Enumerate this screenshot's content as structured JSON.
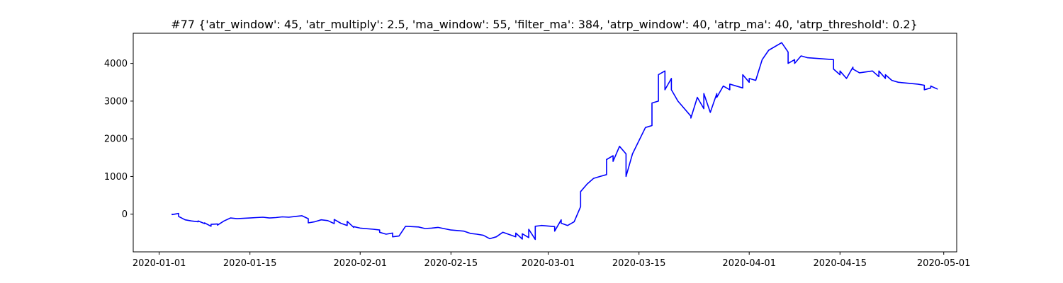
{
  "chart_data": {
    "type": "line",
    "title": "#77 {'atr_window': 45, 'atr_multiply': 2.5, 'ma_window': 55, 'filter_ma': 384, 'atrp_window': 40, 'atrp_ma': 40, 'atrp_threshold': 0.2}",
    "xlabel": "",
    "ylabel": "",
    "x_axis_type": "date",
    "xlim": [
      "2019-12-28",
      "2020-05-03"
    ],
    "ylim": [
      -1000,
      4800
    ],
    "grid": false,
    "legend": "none",
    "line_color": "#0000ff",
    "x_ticks": [
      {
        "date": "2020-01-01",
        "label": "2020-01-01"
      },
      {
        "date": "2020-01-15",
        "label": "2020-01-15"
      },
      {
        "date": "2020-02-01",
        "label": "2020-02-01"
      },
      {
        "date": "2020-02-15",
        "label": "2020-02-15"
      },
      {
        "date": "2020-03-01",
        "label": "2020-03-01"
      },
      {
        "date": "2020-03-15",
        "label": "2020-03-15"
      },
      {
        "date": "2020-04-01",
        "label": "2020-04-01"
      },
      {
        "date": "2020-04-15",
        "label": "2020-04-15"
      },
      {
        "date": "2020-05-01",
        "label": "2020-05-01"
      }
    ],
    "y_ticks": [
      {
        "value": 0,
        "label": "0"
      },
      {
        "value": 1000,
        "label": "1000"
      },
      {
        "value": 2000,
        "label": "2000"
      },
      {
        "value": 3000,
        "label": "3000"
      },
      {
        "value": 4000,
        "label": "4000"
      }
    ],
    "series": [
      {
        "x": [
          "2020-01-03",
          "2020-01-03",
          "2020-01-04",
          "2020-01-04",
          "2020-01-04",
          "2020-01-05",
          "2020-01-06",
          "2020-01-07",
          "2020-01-07",
          "2020-01-08",
          "2020-01-08",
          "2020-01-09",
          "2020-01-09",
          "2020-01-10",
          "2020-01-10",
          "2020-01-11",
          "2020-01-12",
          "2020-01-13",
          "2020-01-14",
          "2020-01-15",
          "2020-01-16",
          "2020-01-17",
          "2020-01-18",
          "2020-01-19",
          "2020-01-20",
          "2020-01-21",
          "2020-01-22",
          "2020-01-23",
          "2020-01-24",
          "2020-01-24",
          "2020-01-25",
          "2020-01-26",
          "2020-01-27",
          "2020-01-28",
          "2020-01-28",
          "2020-01-29",
          "2020-01-30",
          "2020-01-30",
          "2020-01-31",
          "2020-01-31",
          "2020-02-01",
          "2020-02-03",
          "2020-02-04",
          "2020-02-04",
          "2020-02-05",
          "2020-02-06",
          "2020-02-06",
          "2020-02-07",
          "2020-02-08",
          "2020-02-09",
          "2020-02-10",
          "2020-02-11",
          "2020-02-12",
          "2020-02-13",
          "2020-02-15",
          "2020-02-17",
          "2020-02-18",
          "2020-02-19",
          "2020-02-20",
          "2020-02-21",
          "2020-02-22",
          "2020-02-23",
          "2020-02-25",
          "2020-02-25",
          "2020-02-26",
          "2020-02-26",
          "2020-02-27",
          "2020-02-27",
          "2020-02-28",
          "2020-02-28",
          "2020-02-29",
          "2020-03-02",
          "2020-03-02",
          "2020-03-03",
          "2020-03-03",
          "2020-03-04",
          "2020-03-05",
          "2020-03-06",
          "2020-03-06",
          "2020-03-07",
          "2020-03-08",
          "2020-03-09",
          "2020-03-10",
          "2020-03-10",
          "2020-03-11",
          "2020-03-11",
          "2020-03-12",
          "2020-03-13",
          "2020-03-13",
          "2020-03-14",
          "2020-03-16",
          "2020-03-17",
          "2020-03-17",
          "2020-03-18",
          "2020-03-18",
          "2020-03-19",
          "2020-03-19",
          "2020-03-20",
          "2020-03-20",
          "2020-03-21",
          "2020-03-23",
          "2020-03-23",
          "2020-03-24",
          "2020-03-25",
          "2020-03-25",
          "2020-03-26",
          "2020-03-27",
          "2020-03-27",
          "2020-03-28",
          "2020-03-29",
          "2020-03-29",
          "2020-03-31",
          "2020-03-31",
          "2020-04-01",
          "2020-04-01",
          "2020-04-02",
          "2020-04-03",
          "2020-04-04",
          "2020-04-06",
          "2020-04-07",
          "2020-04-07",
          "2020-04-08",
          "2020-04-08",
          "2020-04-09",
          "2020-04-10",
          "2020-04-14",
          "2020-04-14",
          "2020-04-15",
          "2020-04-15",
          "2020-04-16",
          "2020-04-17",
          "2020-04-17",
          "2020-04-18",
          "2020-04-20",
          "2020-04-21",
          "2020-04-21",
          "2020-04-22",
          "2020-04-22",
          "2020-04-23",
          "2020-04-24",
          "2020-04-27",
          "2020-04-28",
          "2020-04-28",
          "2020-04-29",
          "2020-04-29",
          "2020-04-30"
        ],
        "values": [
          0,
          -10,
          20,
          -30,
          -60,
          -150,
          -180,
          -200,
          -180,
          -250,
          -230,
          -320,
          -270,
          -260,
          -290,
          -180,
          -100,
          -120,
          -110,
          -100,
          -90,
          -80,
          -100,
          -90,
          -70,
          -80,
          -60,
          -40,
          -120,
          -230,
          -200,
          -150,
          -170,
          -250,
          -140,
          -240,
          -300,
          -190,
          -350,
          -330,
          -370,
          -400,
          -420,
          -480,
          -530,
          -500,
          -600,
          -580,
          -320,
          -330,
          -340,
          -380,
          -370,
          -350,
          -420,
          -450,
          -510,
          -530,
          -560,
          -650,
          -600,
          -480,
          -600,
          -500,
          -660,
          -520,
          -620,
          -400,
          -670,
          -320,
          -300,
          -330,
          -450,
          -150,
          -240,
          -300,
          -200,
          200,
          600,
          800,
          950,
          1000,
          1050,
          1450,
          1550,
          1400,
          1800,
          1600,
          1000,
          1600,
          2300,
          2350,
          2950,
          3000,
          3700,
          3800,
          3300,
          3600,
          3300,
          3000,
          2600,
          2550,
          3100,
          2800,
          3200,
          2700,
          3200,
          3100,
          3400,
          3300,
          3450,
          3350,
          3700,
          3500,
          3600,
          3550,
          4100,
          4350,
          4550,
          4300,
          4000,
          4100,
          4000,
          4200,
          4150,
          4100,
          3850,
          3700,
          3800,
          3600,
          3900,
          3850,
          3750,
          3800,
          3650,
          3800,
          3600,
          3700,
          3550,
          3500,
          3450,
          3420,
          3300,
          3350,
          3400,
          3320
        ]
      }
    ]
  }
}
